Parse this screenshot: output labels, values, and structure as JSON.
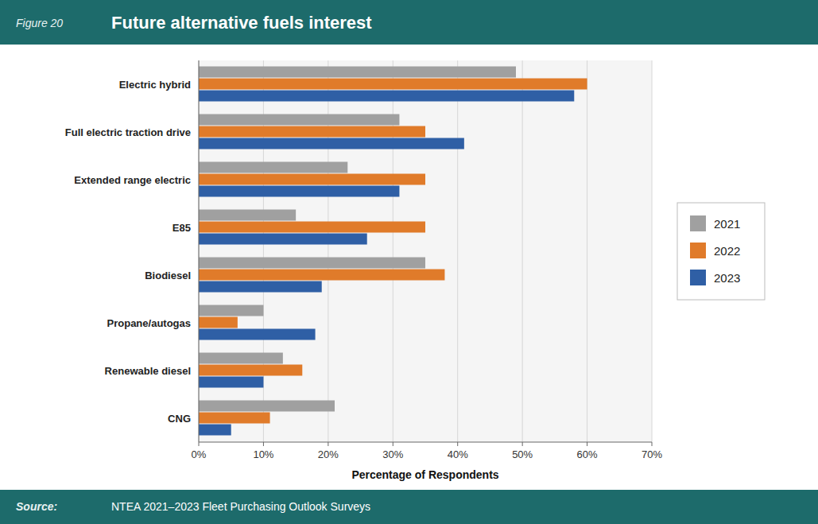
{
  "chart_data": {
    "type": "bar",
    "orientation": "horizontal",
    "title": "Future alternative fuels interest",
    "annotations": [
      "Figure 20",
      "Source:",
      "NTEA 2021–2023 Fleet Purchasing Outlook Surveys"
    ],
    "x_label": "Percentage of Respondents",
    "categories": [
      "Electric hybrid",
      "Full electric traction drive",
      "Extended range electric",
      "E85",
      "Biodiesel",
      "Propane/autogas",
      "Renewable diesel",
      "CNG"
    ],
    "series": [
      {
        "name": "2021",
        "color": "#a0a0a0",
        "values": [
          49,
          31,
          23,
          15,
          35,
          10,
          13,
          21
        ]
      },
      {
        "name": "2022",
        "color": "#e07b2a",
        "values": [
          60,
          35,
          35,
          35,
          38,
          6,
          16,
          11
        ]
      },
      {
        "name": "2023",
        "color": "#2f5fa5",
        "values": [
          58,
          41,
          31,
          26,
          19,
          18,
          10,
          5
        ]
      }
    ],
    "xlim": [
      0,
      70
    ],
    "xticks": [
      {
        "value": 0,
        "label": "0%"
      },
      {
        "value": 10,
        "label": "10%"
      },
      {
        "value": 20,
        "label": "20%"
      },
      {
        "value": 30,
        "label": "30%"
      },
      {
        "value": 40,
        "label": "40%"
      },
      {
        "value": 50,
        "label": "50%"
      },
      {
        "value": 60,
        "label": "60%"
      },
      {
        "value": 70,
        "label": "70%"
      }
    ],
    "grid": true,
    "legend": "right"
  }
}
